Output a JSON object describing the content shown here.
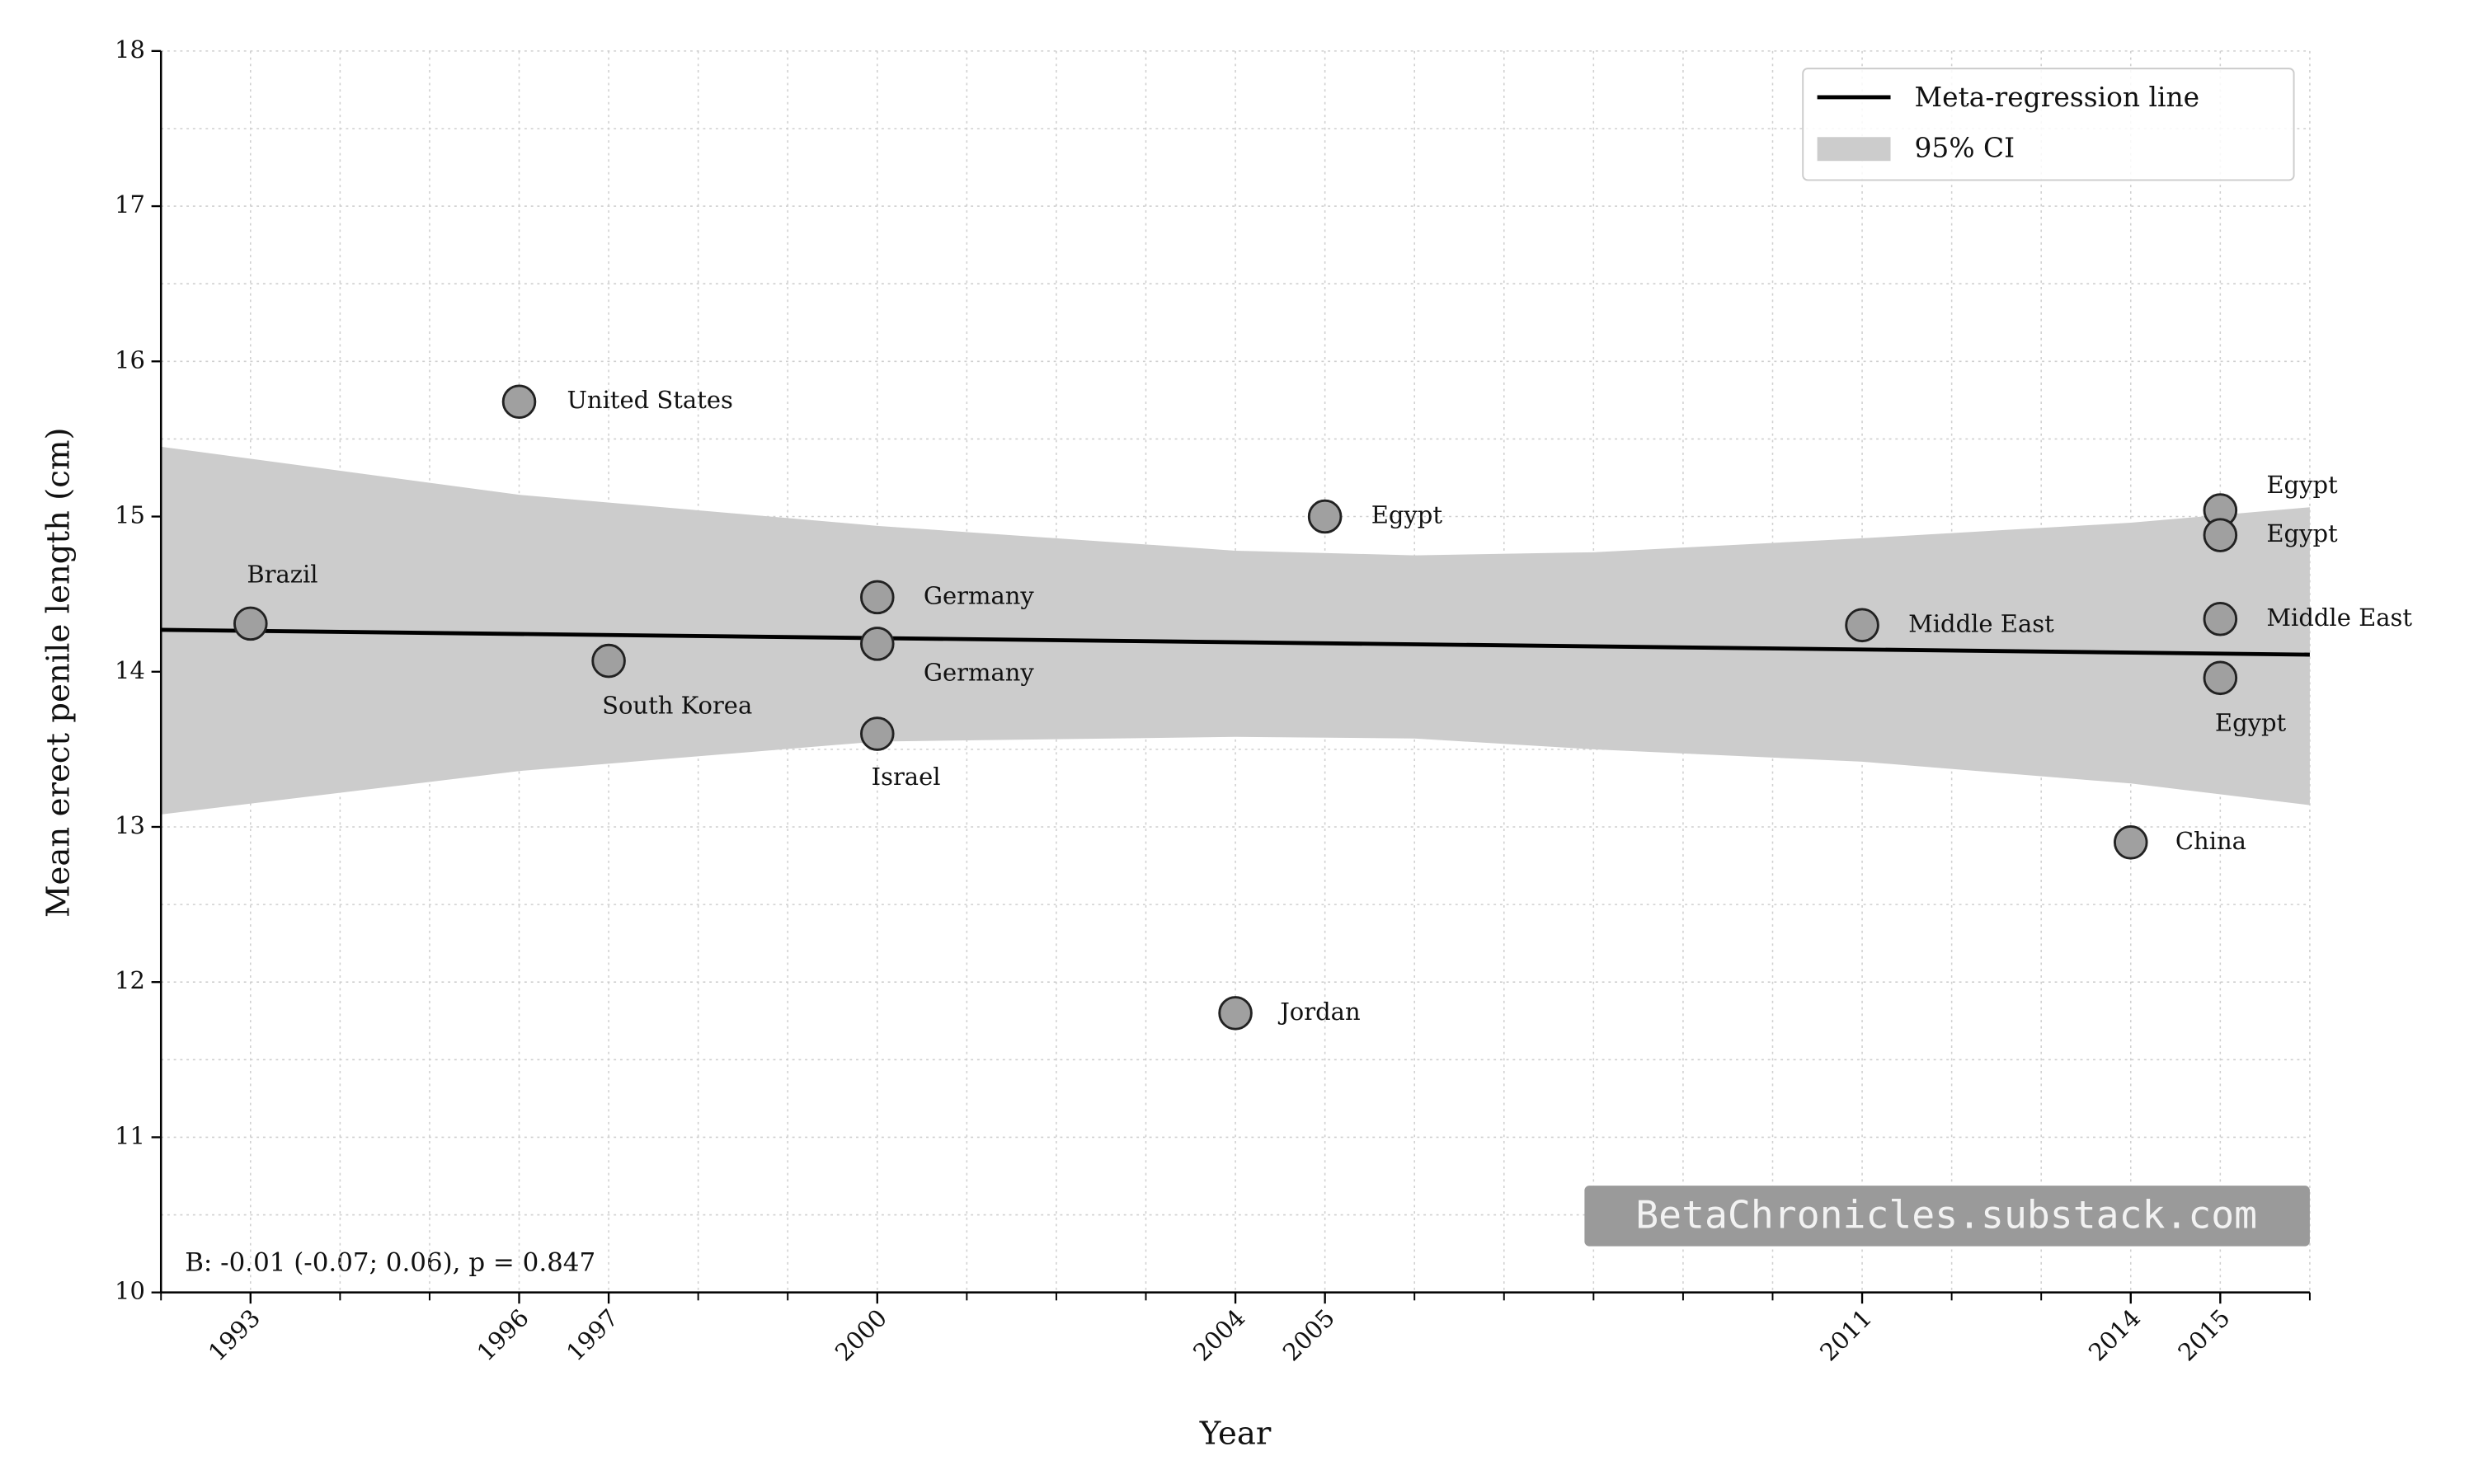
{
  "chart_data": {
    "type": "scatter",
    "x_label": "Year",
    "y_label": "Mean erect penile length (cm)",
    "xlim": [
      1992,
      2016
    ],
    "ylim": [
      10,
      18
    ],
    "xticks": [
      1993,
      1996,
      1997,
      2000,
      2004,
      2005,
      2011,
      2014,
      2015
    ],
    "xminorticks": [
      1992,
      1993,
      1994,
      1995,
      1996,
      1997,
      1998,
      1999,
      2000,
      2001,
      2002,
      2003,
      2004,
      2005,
      2006,
      2007,
      2008,
      2009,
      2010,
      2011,
      2012,
      2013,
      2014,
      2015,
      2016
    ],
    "yticks": [
      10,
      11,
      12,
      13,
      14,
      15,
      16,
      17,
      18
    ],
    "yminorticks": [
      10.5,
      11.5,
      12.5,
      13.5,
      14.5,
      15.5,
      16.5,
      17.5
    ],
    "grid": true,
    "points": {
      "x": [
        1993,
        1996,
        1997,
        2000,
        2000,
        2000,
        2004,
        2005,
        2011,
        2014,
        2015,
        2015,
        2015,
        2015
      ],
      "y": [
        14.31,
        15.74,
        14.07,
        14.48,
        14.18,
        13.6,
        11.8,
        15.0,
        14.3,
        12.9,
        15.04,
        14.88,
        14.34,
        13.96
      ],
      "labels": [
        "Brazil",
        "United States",
        "South Korea",
        "Germany",
        "Germany",
        "Israel",
        "Jordan",
        "Egypt",
        "Middle East",
        "China",
        "Egypt",
        "Egypt",
        "Middle East",
        "Egypt"
      ],
      "color": "#a0a0a0"
    },
    "regression": {
      "name": "Meta-regression line",
      "color": "#000000",
      "x": [
        1992,
        2016
      ],
      "y": [
        14.27,
        14.11
      ]
    },
    "ci": {
      "name": "95% CI",
      "color": "#cccccc",
      "x": [
        1992,
        1996,
        2000,
        2004,
        2006,
        2008,
        2011,
        2014,
        2016
      ],
      "upper": [
        15.45,
        15.14,
        14.94,
        14.78,
        14.75,
        14.77,
        14.86,
        14.96,
        15.06
      ],
      "lower": [
        13.08,
        13.36,
        13.55,
        13.58,
        13.57,
        13.5,
        13.42,
        13.28,
        13.14
      ]
    },
    "legend": "upper right",
    "annotation": "B: -0.01 (-0.07; 0.06), p = 0.847",
    "watermark": "BetaChronicles.substack.com"
  }
}
